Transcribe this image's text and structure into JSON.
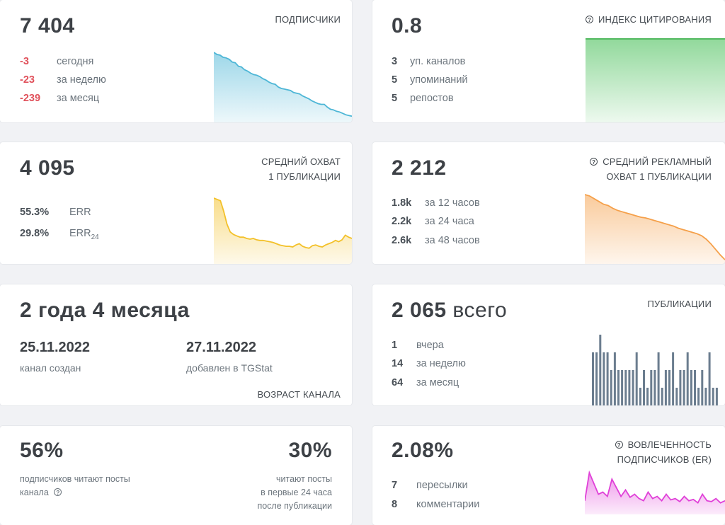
{
  "subscribers": {
    "value": "7 404",
    "title": "ПОДПИСЧИКИ",
    "rows": [
      {
        "value": "-3",
        "label": "сегодня"
      },
      {
        "value": "-23",
        "label": "за неделю"
      },
      {
        "value": "-239",
        "label": "за месяц"
      }
    ],
    "color": "#4db6d6",
    "trend": [
      100,
      97,
      96,
      93,
      92,
      90,
      86,
      85,
      80,
      79,
      75,
      73,
      70,
      68,
      67,
      65,
      62,
      60,
      57,
      55,
      54,
      50,
      48,
      47,
      46,
      45,
      42,
      41,
      40,
      37,
      35,
      33,
      30,
      28,
      26,
      25,
      25,
      21,
      18,
      17,
      15,
      14,
      12,
      10,
      9,
      8
    ]
  },
  "citation": {
    "value": "0.8",
    "title": "ИНДЕКС ЦИТИРОВАНИЯ",
    "icon": "question-icon",
    "rows": [
      {
        "value": "3",
        "label": "уп. каналов"
      },
      {
        "value": "5",
        "label": "упоминаний"
      },
      {
        "value": "5",
        "label": "репостов"
      }
    ],
    "color": "#6dcc7a"
  },
  "reach": {
    "value": "4 095",
    "title_line1": "СРЕДНИЙ ОХВАТ",
    "title_line2": "1 ПУБЛИКАЦИИ",
    "err_value": "55.3%",
    "err_label": "ERR",
    "err24_value": "29.8%",
    "err24_label": "ERR",
    "err24_sub": "24",
    "color": "#f3c12a",
    "trend": [
      100,
      98,
      96,
      80,
      60,
      48,
      44,
      42,
      40,
      40,
      38,
      37,
      38,
      36,
      35,
      35,
      34,
      33,
      32,
      30,
      28,
      27,
      26,
      26,
      25,
      28,
      30,
      26,
      24,
      23,
      27,
      28,
      26,
      25,
      28,
      30,
      32,
      35,
      33,
      36,
      43,
      40,
      38
    ]
  },
  "ad_reach": {
    "value": "2 212",
    "title_line1": "СРЕДНИЙ РЕКЛАМНЫЙ",
    "title_line2": "ОХВАТ 1 ПУБЛИКАЦИИ",
    "icon": "question-icon",
    "rows": [
      {
        "value": "1.8k",
        "label": "за 12 часов"
      },
      {
        "value": "2.2k",
        "label": "за 24 часа"
      },
      {
        "value": "2.6k",
        "label": "за 48 часов"
      }
    ],
    "color": "#f5a04a",
    "trend": [
      100,
      98,
      94,
      90,
      86,
      84,
      80,
      77,
      75,
      73,
      71,
      69,
      67,
      66,
      64,
      62,
      60,
      58,
      56,
      54,
      51,
      49,
      47,
      45,
      43,
      40,
      35,
      28,
      20,
      12,
      5
    ]
  },
  "age": {
    "value": "2 года 4 месяца",
    "created_date": "25.11.2022",
    "created_label": "канал создан",
    "added_date": "27.11.2022",
    "added_label": "добавлен в TGStat",
    "title": "ВОЗРАСТ КАНАЛА"
  },
  "posts": {
    "value": "2 065",
    "value_suffix": "всего",
    "title": "ПУБЛИКАЦИИ",
    "rows": [
      {
        "value": "1",
        "label": "вчера"
      },
      {
        "value": "14",
        "label": "за неделю"
      },
      {
        "value": "64",
        "label": "за месяц"
      }
    ],
    "color": "#6b7d8f",
    "bars": [
      3,
      3,
      4,
      3,
      3,
      2,
      3,
      2,
      2,
      2,
      2,
      2,
      3,
      1,
      2,
      1,
      2,
      2,
      3,
      1,
      2,
      2,
      3,
      1,
      2,
      2,
      3,
      2,
      2,
      1,
      2,
      1,
      3,
      1,
      1
    ]
  },
  "read_share": {
    "value1": "56%",
    "label1_line1": "подписчиков читают посты",
    "label1_line2": "канала",
    "value2": "30%",
    "label2_line1": "читают посты",
    "label2_line2": "в первые 24 часа",
    "label2_line3": "после публикации",
    "icon": "question-icon"
  },
  "engagement": {
    "value": "2.08%",
    "title_line1": "ВОВЛЕЧЕННОСТЬ",
    "title_line2": "ПОДПИСЧИКОВ (ER)",
    "icon": "question-icon",
    "rows": [
      {
        "value": "7",
        "label": "пересылки"
      },
      {
        "value": "8",
        "label": "комментарии"
      }
    ],
    "color": "#e040d8",
    "trend": [
      30,
      95,
      70,
      45,
      50,
      40,
      80,
      60,
      40,
      55,
      38,
      45,
      35,
      30,
      50,
      35,
      40,
      30,
      45,
      32,
      35,
      28,
      40,
      30,
      33,
      25,
      45,
      30,
      28,
      35,
      25,
      30
    ]
  }
}
